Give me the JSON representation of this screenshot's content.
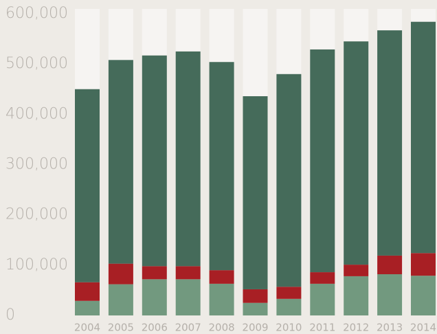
{
  "chart_data": {
    "type": "stacked_bar",
    "categories": [
      "2004",
      "2005",
      "2006",
      "2007",
      "2008",
      "2009",
      "2010",
      "2011",
      "2012",
      "2013",
      "2014"
    ],
    "series": [
      {
        "color": "#72997f",
        "values": [
          29000,
          62000,
          72000,
          72000,
          63000,
          25000,
          33000,
          63000,
          78000,
          82000,
          79000
        ]
      },
      {
        "color": "#a81f24",
        "values": [
          37000,
          41000,
          26000,
          26000,
          27000,
          27000,
          24000,
          23000,
          23000,
          37000,
          45000
        ]
      },
      {
        "color": "#456b5a",
        "values": [
          384000,
          405000,
          419000,
          427000,
          414000,
          384000,
          423000,
          443000,
          444000,
          448000,
          460000
        ]
      }
    ],
    "ylim": [
      0,
      600000
    ],
    "yticks": [
      0,
      {
        "value": 100000,
        "label": "100,000"
      },
      {
        "value": 200000,
        "label": "200,000"
      },
      {
        "value": 300000,
        "label": "300,000"
      },
      {
        "value": 400000,
        "label": "400,000"
      },
      {
        "value": 500000,
        "label": "500,000"
      },
      {
        "value": 600000,
        "label": "600,000"
      }
    ]
  }
}
